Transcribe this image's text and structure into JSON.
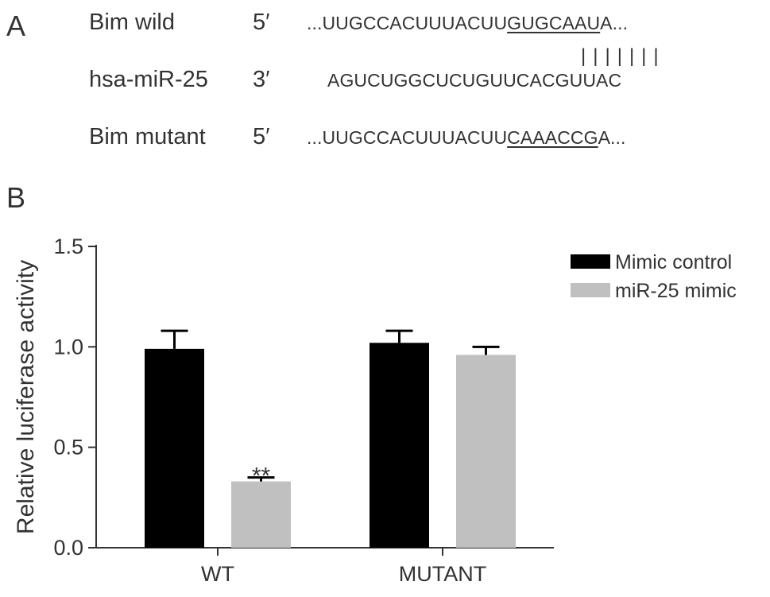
{
  "panel_a": {
    "label": "A",
    "rows": [
      {
        "name": "Bim wild",
        "end": "5′",
        "prefix": "...UUGCCACUUUACUU",
        "underlined": "GUGCAAU",
        "suffix": "A..."
      },
      {
        "name": "hsa-miR-25",
        "end": "3′",
        "prefix": "AGUCUGGCUCUGUUCACGUUAC",
        "underlined": "",
        "suffix": ""
      },
      {
        "name": "Bim mutant",
        "end": "5′",
        "prefix": "...UUGCCACUUUACUU",
        "underlined": "CAAACCG",
        "suffix": "A..."
      }
    ],
    "pairing": "|||||||"
  },
  "panel_b": {
    "label": "B"
  },
  "chart_data": {
    "type": "bar",
    "categories": [
      "WT",
      "MUTANT"
    ],
    "series": [
      {
        "name": "Mimic control",
        "color": "#000000",
        "values": [
          0.99,
          1.02
        ],
        "errors": [
          0.09,
          0.06
        ]
      },
      {
        "name": "miR-25 mimic",
        "color": "#c0c0c0",
        "values": [
          0.33,
          0.96
        ],
        "errors": [
          0.02,
          0.04
        ]
      }
    ],
    "ylabel": "Relative luciferase activity",
    "ylim": [
      0,
      1.5
    ],
    "yticks": [
      "0.0",
      "0.5",
      "1.0",
      "1.5"
    ],
    "annotations": [
      {
        "category": "WT",
        "series": "miR-25 mimic",
        "text": "**"
      }
    ],
    "grid": false,
    "legend_position": "top-right"
  }
}
